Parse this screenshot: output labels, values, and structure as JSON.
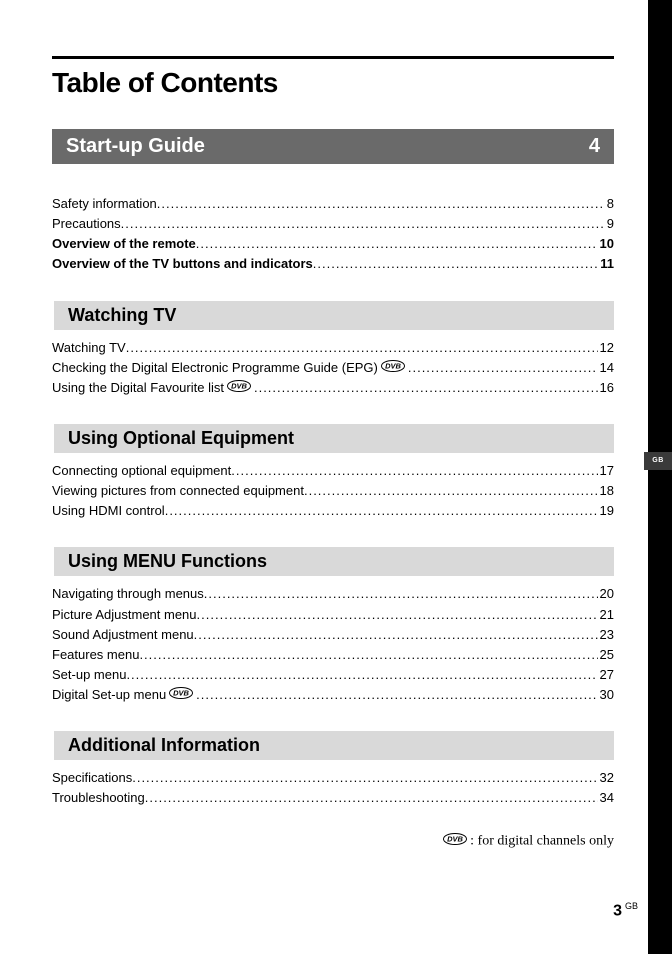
{
  "colors": {
    "page_bg": "#ffffff",
    "sidebar_bg": "#000000",
    "band_main_bg": "#6a6a6a",
    "band_main_fg": "#ffffff",
    "band_sub_bg": "#d9d9d9",
    "text": "#000000",
    "side_tab_bg": "#3a3a3a"
  },
  "typography": {
    "title_fontsize": 28,
    "band_main_fontsize": 20,
    "band_sub_fontsize": 18,
    "toc_fontsize": 13,
    "legend_fontsize": 14
  },
  "side_tab": "GB",
  "title": "Table of Contents",
  "main_band": {
    "label": "Start-up Guide",
    "page": "4"
  },
  "intro_lines": [
    {
      "label": "Safety information",
      "page": "8",
      "bold": false,
      "dvb": false
    },
    {
      "label": "Precautions",
      "page": "9",
      "bold": false,
      "dvb": false
    },
    {
      "label": "Overview of the remote",
      "page": "10",
      "bold": true,
      "dvb": false
    },
    {
      "label": "Overview of the TV buttons and indicators",
      "page": "11",
      "bold": true,
      "dvb": false
    }
  ],
  "sections": [
    {
      "heading": "Watching TV",
      "lines": [
        {
          "label": "Watching TV",
          "page": "12",
          "bold": false,
          "dvb": false
        },
        {
          "label": "Checking the Digital Electronic Programme Guide (EPG)",
          "page": "14",
          "bold": false,
          "dvb": true
        },
        {
          "label": "Using the Digital Favourite list",
          "page": "16",
          "bold": false,
          "dvb": true
        }
      ]
    },
    {
      "heading": "Using Optional Equipment",
      "lines": [
        {
          "label": "Connecting optional equipment",
          "page": "17",
          "bold": false,
          "dvb": false
        },
        {
          "label": "Viewing pictures from connected equipment",
          "page": "18",
          "bold": false,
          "dvb": false
        },
        {
          "label": "Using HDMI control",
          "page": "19",
          "bold": false,
          "dvb": false
        }
      ]
    },
    {
      "heading": "Using MENU Functions",
      "lines": [
        {
          "label": "Navigating through menus",
          "page": "20",
          "bold": false,
          "dvb": false
        },
        {
          "label": "Picture Adjustment menu",
          "page": "21",
          "bold": false,
          "dvb": false
        },
        {
          "label": "Sound Adjustment menu",
          "page": "23",
          "bold": false,
          "dvb": false
        },
        {
          "label": "Features menu",
          "page": "25",
          "bold": false,
          "dvb": false
        },
        {
          "label": "Set-up menu",
          "page": "27",
          "bold": false,
          "dvb": false
        },
        {
          "label": "Digital Set-up menu",
          "page": "30",
          "bold": false,
          "dvb": true
        }
      ]
    },
    {
      "heading": "Additional Information",
      "lines": [
        {
          "label": "Specifications",
          "page": "32",
          "bold": false,
          "dvb": false
        },
        {
          "label": "Troubleshooting",
          "page": "34",
          "bold": false,
          "dvb": false
        }
      ]
    }
  ],
  "legend": ": for digital channels only",
  "footer": {
    "num": "3",
    "sup": "GB"
  },
  "dvb_icon": {
    "width": 24,
    "height": 12,
    "stroke": "#000000",
    "bg": "#ffffff"
  }
}
